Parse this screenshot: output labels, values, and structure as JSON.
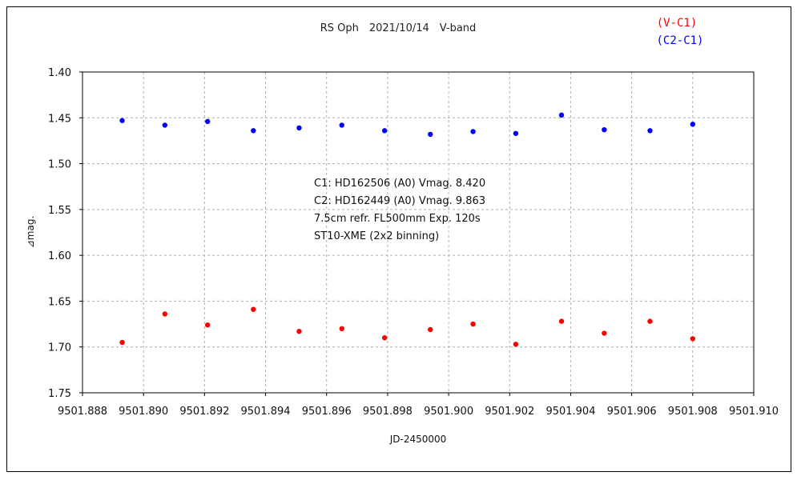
{
  "chart_data": {
    "type": "scatter",
    "title": "RS Oph　2021/10/14　V-band",
    "xlabel": "JD-2450000",
    "ylabel": "⊿mag.",
    "xlim": [
      9501.888,
      9501.91
    ],
    "ylim": [
      1.4,
      1.75
    ],
    "y_inverted": true,
    "grid": true,
    "legend_position": "top-right",
    "x_ticks": [
      "9501.888",
      "9501.890",
      "9501.892",
      "9501.894",
      "9501.896",
      "9501.898",
      "9501.900",
      "9501.902",
      "9501.904",
      "9501.906",
      "9501.908",
      "9501.910"
    ],
    "y_ticks": [
      "1.40",
      "1.45",
      "1.50",
      "1.55",
      "1.60",
      "1.65",
      "1.70",
      "1.75"
    ],
    "annotations": [
      "C1: HD162506 (A0) Vmag. 8.420",
      "C2: HD162449 (A0) Vmag. 9.863",
      "7.5cm refr. FL500mm Exp. 120s",
      "ST10-XME (2x2 binning)"
    ],
    "series": [
      {
        "name": "(V-C1)",
        "color": "#ff0000",
        "x": [
          9501.8893,
          9501.8907,
          9501.8921,
          9501.8936,
          9501.8951,
          9501.8965,
          9501.8979,
          9501.8994,
          9501.9008,
          9501.9022,
          9501.9037,
          9501.9051,
          9501.9066,
          9501.908
        ],
        "y": [
          1.695,
          1.664,
          1.676,
          1.659,
          1.683,
          1.68,
          1.69,
          1.681,
          1.675,
          1.697,
          1.672,
          1.685,
          1.672,
          1.691
        ]
      },
      {
        "name": "(C2-C1)",
        "color": "#0000ff",
        "x": [
          9501.8893,
          9501.8907,
          9501.8921,
          9501.8936,
          9501.8951,
          9501.8965,
          9501.8979,
          9501.8994,
          9501.9008,
          9501.9022,
          9501.9037,
          9501.9051,
          9501.9066,
          9501.908
        ],
        "y": [
          1.453,
          1.458,
          1.454,
          1.464,
          1.461,
          1.458,
          1.464,
          1.468,
          1.465,
          1.467,
          1.447,
          1.463,
          1.464,
          1.457
        ]
      }
    ]
  }
}
